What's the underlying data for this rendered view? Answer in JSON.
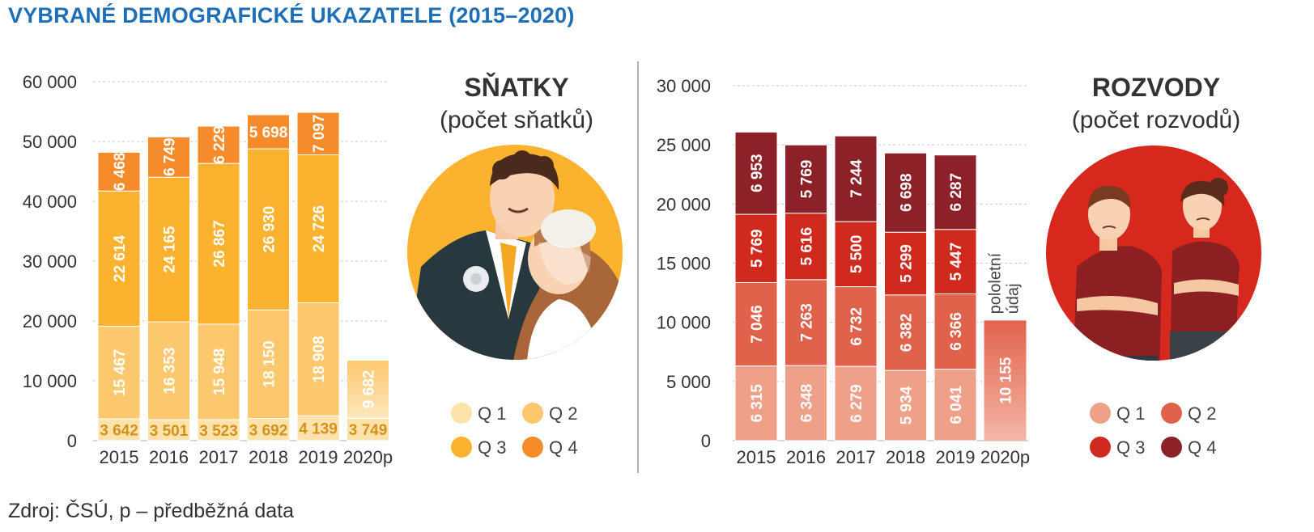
{
  "title": "VYBRANÉ DEMOGRAFICKÉ UKAZATELE (2015–2020)",
  "source": "Zdroj: ČSÚ, p – předběžná data",
  "chart_data": [
    {
      "type": "bar",
      "stacked": true,
      "title": "SŇATKY",
      "subtitle": "(počet sňatků)",
      "categories": [
        "2015",
        "2016",
        "2017",
        "2018",
        "2019",
        "2020p"
      ],
      "ylim": [
        0,
        60000
      ],
      "yticks": [
        0,
        10000,
        20000,
        30000,
        40000,
        50000,
        60000
      ],
      "ytick_labels": [
        "0",
        "10 000",
        "20 000",
        "30 000",
        "40 000",
        "50 000",
        "60 000"
      ],
      "grid": true,
      "legend_position": "bottom-right",
      "series": [
        {
          "name": "Q 1",
          "color": "#fde2ac",
          "values": [
            3642,
            3501,
            3523,
            3692,
            4139,
            3749
          ],
          "labels": [
            "3 642",
            "3 501",
            "3 523",
            "3 692",
            "4 139",
            "3 749"
          ],
          "label_color": "#d4921a"
        },
        {
          "name": "Q 2",
          "color": "#fcc86d",
          "values": [
            15467,
            16353,
            15948,
            18150,
            18908,
            9682
          ],
          "labels": [
            "15 467",
            "16 353",
            "15 948",
            "18 150",
            "18 908",
            "9 682"
          ],
          "label_color": "#ffffff"
        },
        {
          "name": "Q 3",
          "color": "#fbb22e",
          "values": [
            22614,
            24165,
            26867,
            26930,
            24726,
            null
          ],
          "labels": [
            "22 614",
            "24 165",
            "26 867",
            "26 930",
            "24 726",
            ""
          ],
          "label_color": "#ffffff"
        },
        {
          "name": "Q 4",
          "color": "#f68b2b",
          "values": [
            6468,
            6749,
            6229,
            5698,
            7097,
            null
          ],
          "labels": [
            "6 468",
            "6 749",
            "6 229",
            "5 698",
            "7 097",
            ""
          ],
          "label_color": "#ffffff"
        }
      ]
    },
    {
      "type": "bar",
      "stacked": true,
      "title": "ROZVODY",
      "subtitle": "(počet rozvodů)",
      "categories": [
        "2015",
        "2016",
        "2017",
        "2018",
        "2019",
        "2020p"
      ],
      "ylim": [
        0,
        30000
      ],
      "yticks": [
        0,
        5000,
        10000,
        15000,
        20000,
        25000,
        30000
      ],
      "ytick_labels": [
        "0",
        "5 000",
        "10 000",
        "15 000",
        "20 000",
        "25 000",
        "30 000"
      ],
      "grid": true,
      "legend_position": "bottom-right",
      "annotation": "pololetní údaj",
      "series": [
        {
          "name": "Q 1",
          "color": "#eea088",
          "values": [
            6315,
            6348,
            6279,
            5934,
            6041,
            null
          ],
          "labels": [
            "6 315",
            "6 348",
            "6 279",
            "5 934",
            "6 041",
            ""
          ],
          "label_color": "#ffffff"
        },
        {
          "name": "Q 2",
          "color": "#e0624a",
          "values": [
            7046,
            7263,
            6732,
            6382,
            6366,
            null
          ],
          "labels": [
            "7 046",
            "7 263",
            "6 732",
            "6 382",
            "6 366",
            ""
          ],
          "label_color": "#ffffff"
        },
        {
          "name": "Q 3",
          "color": "#cf2a1d",
          "values": [
            5769,
            5616,
            5500,
            5299,
            5447,
            null
          ],
          "labels": [
            "5 769",
            "5 616",
            "5 500",
            "5 299",
            "5 447",
            ""
          ],
          "label_color": "#ffffff"
        },
        {
          "name": "Q 4",
          "color": "#8c2228",
          "values": [
            6953,
            5769,
            7244,
            6698,
            6287,
            null
          ],
          "labels": [
            "6 953",
            "5 769",
            "7 244",
            "6 698",
            "6 287",
            ""
          ],
          "label_color": "#ffffff"
        }
      ],
      "half_year": {
        "category": "2020p",
        "value": 10155,
        "label": "10 155",
        "color": "#e2634d"
      }
    }
  ]
}
